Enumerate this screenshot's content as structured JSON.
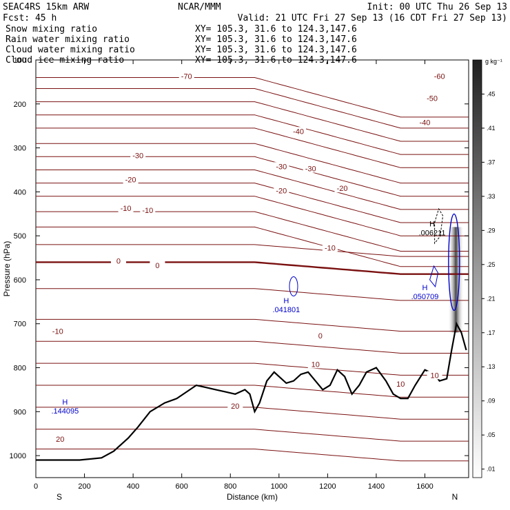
{
  "header": {
    "model": "SEAC4RS 15km ARW",
    "center": "NCAR/MMM",
    "init": "Init: 00 UTC Thu 26 Sep 13",
    "fcst": "Fcst:   45 h",
    "valid": "Valid: 21 UTC Fri 27 Sep 13 (16 CDT Fri 27 Sep 13)"
  },
  "colors": {
    "snow": "#000000",
    "rain": "#cc0000",
    "cloud_water": "#0000cc",
    "cloud_ice": "#000000",
    "temperature": "#7a1010",
    "terrain": "#000000"
  },
  "chart_data": {
    "type": "cross-section",
    "xlabel": "Distance (km)",
    "ylabel": "Pressure (hPa)",
    "xlim": [
      0,
      1780
    ],
    "ylim": [
      1050,
      100
    ],
    "x_ticks": [
      0,
      200,
      400,
      600,
      800,
      1000,
      1200,
      1400,
      1600
    ],
    "x_tick_labels": [
      "0",
      "200",
      "400",
      "600",
      "800",
      "1000",
      "1200",
      "1400",
      "1600"
    ],
    "y_ticks": [
      100,
      200,
      300,
      400,
      500,
      600,
      700,
      800,
      900,
      1000
    ],
    "y_tick_labels": [
      "100",
      "200",
      "300",
      "400",
      "500",
      "600",
      "700",
      "800",
      "900",
      "1000"
    ],
    "endpoints": {
      "left": "S",
      "right": "N"
    },
    "series": [
      {
        "name": "Snow mixing ratio",
        "color": "#000000",
        "xy": "XY= 105.3, 31.6 to 124.3,147.6"
      },
      {
        "name": "Rain water mixing ratio",
        "color": "#cc0000",
        "xy": "XY= 105.3, 31.6 to 124.3,147.6"
      },
      {
        "name": "Cloud water mixing ratio",
        "color": "#0000cc",
        "xy": "XY= 105.3, 31.6 to 124.3,147.6"
      },
      {
        "name": "Cloud ice mixing ratio",
        "color": "#000000",
        "xy": "XY= 105.3, 31.6 to 124.3,147.6"
      }
    ],
    "colorbar": {
      "unit": "g kg⁻¹",
      "ticks": [
        ".01",
        ".05",
        ".09",
        ".13",
        ".17",
        ".21",
        ".25",
        ".29",
        ".33",
        ".37",
        ".41",
        ".45"
      ],
      "values": [
        0.01,
        0.05,
        0.09,
        0.13,
        0.17,
        0.21,
        0.25,
        0.29,
        0.33,
        0.37,
        0.41,
        0.45
      ]
    },
    "temperature_labels": [
      {
        "text": "-70",
        "x": 620,
        "p": 140
      },
      {
        "text": "-60",
        "x": 1660,
        "p": 140
      },
      {
        "text": "-50",
        "x": 1630,
        "p": 190
      },
      {
        "text": "-40",
        "x": 1080,
        "p": 265
      },
      {
        "text": "-40",
        "x": 1600,
        "p": 245
      },
      {
        "text": "-30",
        "x": 420,
        "p": 320
      },
      {
        "text": "-30",
        "x": 1010,
        "p": 345
      },
      {
        "text": "-30",
        "x": 1130,
        "p": 350
      },
      {
        "text": "-20",
        "x": 390,
        "p": 375
      },
      {
        "text": "-20",
        "x": 1010,
        "p": 400
      },
      {
        "text": "-20",
        "x": 1260,
        "p": 395
      },
      {
        "text": "-10",
        "x": 370,
        "p": 440
      },
      {
        "text": "-10",
        "x": 460,
        "p": 445
      },
      {
        "text": "-10",
        "x": 1210,
        "p": 530
      },
      {
        "text": "0",
        "x": 340,
        "p": 560
      },
      {
        "text": "0",
        "x": 500,
        "p": 570
      },
      {
        "text": "0",
        "x": 1170,
        "p": 730
      },
      {
        "text": "-10",
        "x": 90,
        "p": 720
      },
      {
        "text": "10",
        "x": 1150,
        "p": 795
      },
      {
        "text": "10",
        "x": 1500,
        "p": 840
      },
      {
        "text": "10",
        "x": 1640,
        "p": 820
      },
      {
        "text": "20",
        "x": 820,
        "p": 890
      },
      {
        "text": "20",
        "x": 100,
        "p": 965
      }
    ],
    "maxima": [
      {
        "text": ".144095",
        "x": 120,
        "p": 890,
        "color": "#0000cc"
      },
      {
        "text": ".041801",
        "x": 1030,
        "p": 660,
        "color": "#0000cc"
      },
      {
        "text": ".050709",
        "x": 1600,
        "p": 630,
        "color": "#0000cc"
      },
      {
        "text": ".006211",
        "x": 1630,
        "p": 485,
        "color": "#000000"
      }
    ],
    "maxima_marker": "H",
    "terrain_profile": {
      "x": [
        0,
        180,
        270,
        320,
        380,
        420,
        470,
        530,
        580,
        620,
        660,
        700,
        740,
        780,
        820,
        860,
        880,
        900,
        920,
        950,
        980,
        1000,
        1030,
        1060,
        1090,
        1120,
        1150,
        1180,
        1210,
        1240,
        1270,
        1300,
        1330,
        1360,
        1400,
        1440,
        1470,
        1500,
        1530,
        1560,
        1600,
        1640,
        1660,
        1690,
        1710,
        1730,
        1750,
        1770
      ],
      "p": [
        1010,
        1010,
        1005,
        990,
        960,
        935,
        900,
        880,
        870,
        855,
        840,
        845,
        850,
        855,
        860,
        850,
        860,
        900,
        880,
        830,
        810,
        820,
        835,
        830,
        815,
        810,
        830,
        850,
        840,
        805,
        820,
        860,
        840,
        810,
        800,
        830,
        860,
        870,
        870,
        840,
        805,
        815,
        830,
        825,
        760,
        700,
        720,
        760
      ]
    }
  }
}
